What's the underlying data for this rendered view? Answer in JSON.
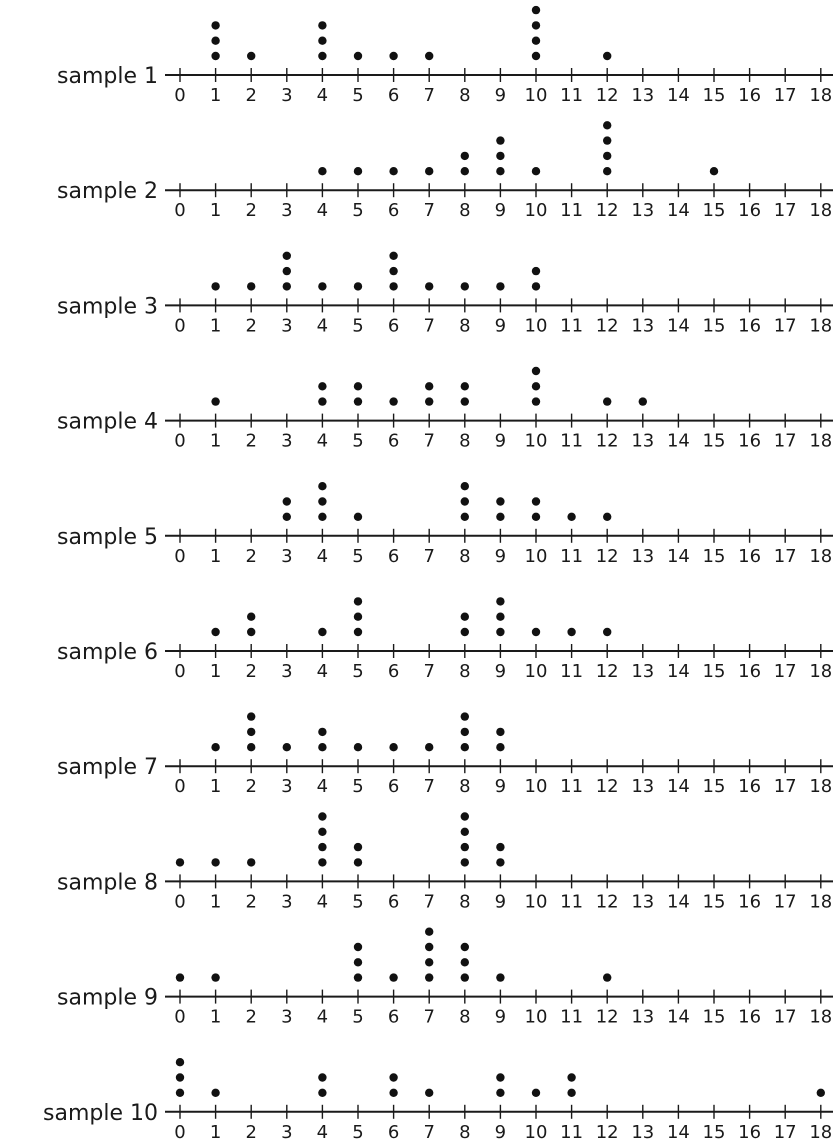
{
  "chart_data": [
    {
      "type": "dot",
      "label": "sample 1",
      "xlim": [
        0,
        18
      ],
      "ticks": [
        0,
        1,
        2,
        3,
        4,
        5,
        6,
        7,
        8,
        9,
        10,
        11,
        12,
        13,
        14,
        15,
        16,
        17,
        18
      ],
      "points": [
        {
          "x": 1,
          "count": 3
        },
        {
          "x": 2,
          "count": 1
        },
        {
          "x": 4,
          "count": 3
        },
        {
          "x": 5,
          "count": 1
        },
        {
          "x": 6,
          "count": 1
        },
        {
          "x": 7,
          "count": 1
        },
        {
          "x": 10,
          "count": 4
        },
        {
          "x": 12,
          "count": 1
        }
      ]
    },
    {
      "type": "dot",
      "label": "sample 2",
      "xlim": [
        0,
        18
      ],
      "ticks": [
        0,
        1,
        2,
        3,
        4,
        5,
        6,
        7,
        8,
        9,
        10,
        11,
        12,
        13,
        14,
        15,
        16,
        17,
        18
      ],
      "points": [
        {
          "x": 4,
          "count": 1
        },
        {
          "x": 5,
          "count": 1
        },
        {
          "x": 6,
          "count": 1
        },
        {
          "x": 7,
          "count": 1
        },
        {
          "x": 8,
          "count": 2
        },
        {
          "x": 9,
          "count": 3
        },
        {
          "x": 10,
          "count": 1
        },
        {
          "x": 12,
          "count": 4
        },
        {
          "x": 15,
          "count": 1
        }
      ]
    },
    {
      "type": "dot",
      "label": "sample 3",
      "xlim": [
        0,
        18
      ],
      "ticks": [
        0,
        1,
        2,
        3,
        4,
        5,
        6,
        7,
        8,
        9,
        10,
        11,
        12,
        13,
        14,
        15,
        16,
        17,
        18
      ],
      "points": [
        {
          "x": 1,
          "count": 1
        },
        {
          "x": 2,
          "count": 1
        },
        {
          "x": 3,
          "count": 3
        },
        {
          "x": 4,
          "count": 1
        },
        {
          "x": 5,
          "count": 1
        },
        {
          "x": 6,
          "count": 3
        },
        {
          "x": 7,
          "count": 1
        },
        {
          "x": 8,
          "count": 1
        },
        {
          "x": 9,
          "count": 1
        },
        {
          "x": 10,
          "count": 2
        }
      ]
    },
    {
      "type": "dot",
      "label": "sample 4",
      "xlim": [
        0,
        18
      ],
      "ticks": [
        0,
        1,
        2,
        3,
        4,
        5,
        6,
        7,
        8,
        9,
        10,
        11,
        12,
        13,
        14,
        15,
        16,
        17,
        18
      ],
      "points": [
        {
          "x": 1,
          "count": 1
        },
        {
          "x": 4,
          "count": 2
        },
        {
          "x": 5,
          "count": 2
        },
        {
          "x": 6,
          "count": 1
        },
        {
          "x": 7,
          "count": 2
        },
        {
          "x": 8,
          "count": 2
        },
        {
          "x": 10,
          "count": 3
        },
        {
          "x": 12,
          "count": 1
        },
        {
          "x": 13,
          "count": 1
        }
      ]
    },
    {
      "type": "dot",
      "label": "sample 5",
      "xlim": [
        0,
        18
      ],
      "ticks": [
        0,
        1,
        2,
        3,
        4,
        5,
        6,
        7,
        8,
        9,
        10,
        11,
        12,
        13,
        14,
        15,
        16,
        17,
        18
      ],
      "points": [
        {
          "x": 3,
          "count": 2
        },
        {
          "x": 4,
          "count": 3
        },
        {
          "x": 5,
          "count": 1
        },
        {
          "x": 8,
          "count": 3
        },
        {
          "x": 9,
          "count": 2
        },
        {
          "x": 10,
          "count": 2
        },
        {
          "x": 11,
          "count": 1
        },
        {
          "x": 12,
          "count": 1
        }
      ]
    },
    {
      "type": "dot",
      "label": "sample 6",
      "xlim": [
        0,
        18
      ],
      "ticks": [
        0,
        1,
        2,
        3,
        4,
        5,
        6,
        7,
        8,
        9,
        10,
        11,
        12,
        13,
        14,
        15,
        16,
        17,
        18
      ],
      "points": [
        {
          "x": 1,
          "count": 1
        },
        {
          "x": 2,
          "count": 2
        },
        {
          "x": 4,
          "count": 1
        },
        {
          "x": 5,
          "count": 3
        },
        {
          "x": 8,
          "count": 2
        },
        {
          "x": 9,
          "count": 3
        },
        {
          "x": 10,
          "count": 1
        },
        {
          "x": 11,
          "count": 1
        },
        {
          "x": 12,
          "count": 1
        }
      ]
    },
    {
      "type": "dot",
      "label": "sample 7",
      "xlim": [
        0,
        18
      ],
      "ticks": [
        0,
        1,
        2,
        3,
        4,
        5,
        6,
        7,
        8,
        9,
        10,
        11,
        12,
        13,
        14,
        15,
        16,
        17,
        18
      ],
      "points": [
        {
          "x": 1,
          "count": 1
        },
        {
          "x": 2,
          "count": 3
        },
        {
          "x": 3,
          "count": 1
        },
        {
          "x": 4,
          "count": 2
        },
        {
          "x": 5,
          "count": 1
        },
        {
          "x": 6,
          "count": 1
        },
        {
          "x": 7,
          "count": 1
        },
        {
          "x": 8,
          "count": 3
        },
        {
          "x": 9,
          "count": 2
        }
      ]
    },
    {
      "type": "dot",
      "label": "sample 8",
      "xlim": [
        0,
        18
      ],
      "ticks": [
        0,
        1,
        2,
        3,
        4,
        5,
        6,
        7,
        8,
        9,
        10,
        11,
        12,
        13,
        14,
        15,
        16,
        17,
        18
      ],
      "points": [
        {
          "x": 0,
          "count": 1
        },
        {
          "x": 1,
          "count": 1
        },
        {
          "x": 2,
          "count": 1
        },
        {
          "x": 4,
          "count": 4
        },
        {
          "x": 5,
          "count": 2
        },
        {
          "x": 8,
          "count": 4
        },
        {
          "x": 9,
          "count": 2
        }
      ]
    },
    {
      "type": "dot",
      "label": "sample 9",
      "xlim": [
        0,
        18
      ],
      "ticks": [
        0,
        1,
        2,
        3,
        4,
        5,
        6,
        7,
        8,
        9,
        10,
        11,
        12,
        13,
        14,
        15,
        16,
        17,
        18
      ],
      "points": [
        {
          "x": 0,
          "count": 1
        },
        {
          "x": 1,
          "count": 1
        },
        {
          "x": 5,
          "count": 3
        },
        {
          "x": 6,
          "count": 1
        },
        {
          "x": 7,
          "count": 4
        },
        {
          "x": 8,
          "count": 3
        },
        {
          "x": 9,
          "count": 1
        },
        {
          "x": 12,
          "count": 1
        }
      ]
    },
    {
      "type": "dot",
      "label": "sample 10",
      "xlim": [
        0,
        18
      ],
      "ticks": [
        0,
        1,
        2,
        3,
        4,
        5,
        6,
        7,
        8,
        9,
        10,
        11,
        12,
        13,
        14,
        15,
        16,
        17,
        18
      ],
      "points": [
        {
          "x": 0,
          "count": 3
        },
        {
          "x": 1,
          "count": 1
        },
        {
          "x": 4,
          "count": 2
        },
        {
          "x": 6,
          "count": 2
        },
        {
          "x": 7,
          "count": 1
        },
        {
          "x": 9,
          "count": 2
        },
        {
          "x": 10,
          "count": 1
        },
        {
          "x": 11,
          "count": 2
        },
        {
          "x": 18,
          "count": 1
        }
      ]
    }
  ]
}
